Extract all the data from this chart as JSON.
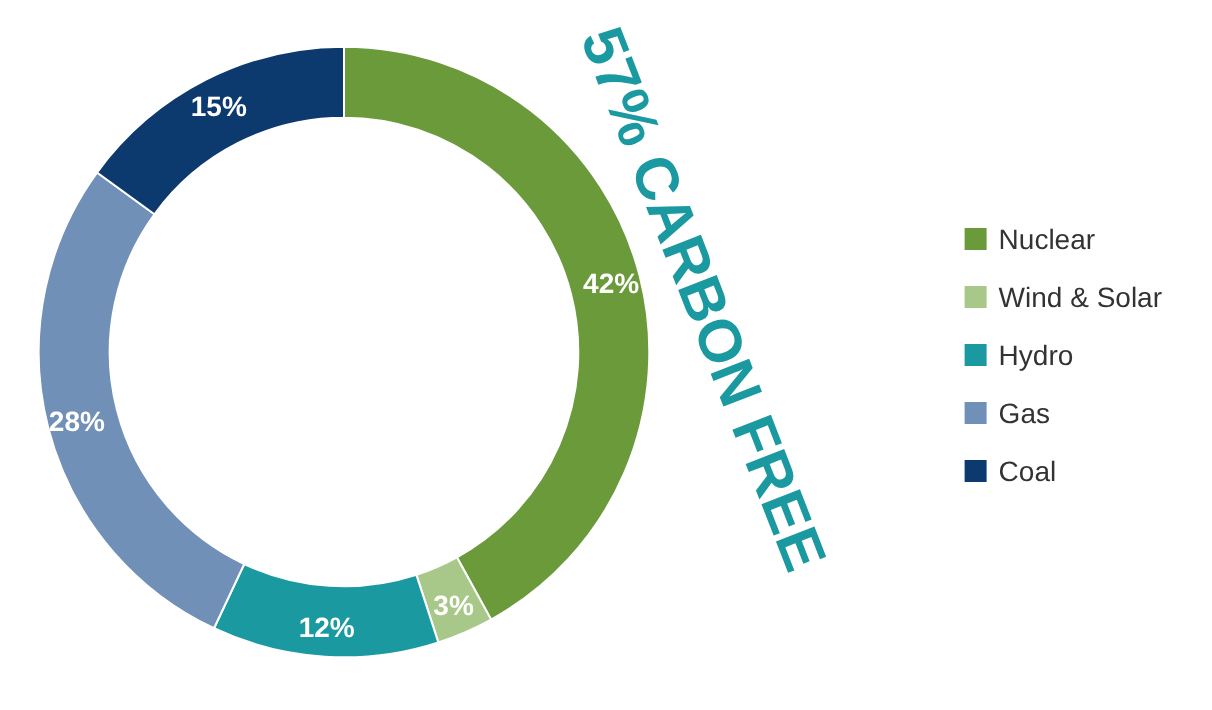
{
  "chart_data": {
    "type": "donut",
    "categories": [
      "Nuclear",
      "Wind & Solar",
      "Hydro",
      "Gas",
      "Coal"
    ],
    "values": [
      42,
      3,
      12,
      28,
      15
    ],
    "colors": [
      "#6a9a3a",
      "#a8c88a",
      "#1a9aa0",
      "#7090b8",
      "#0c3a6e"
    ],
    "value_labels": [
      "42%",
      "3%",
      "12%",
      "28%",
      "15%"
    ],
    "legend": "right",
    "annotations": [
      "57% CARBON FREE"
    ]
  }
}
